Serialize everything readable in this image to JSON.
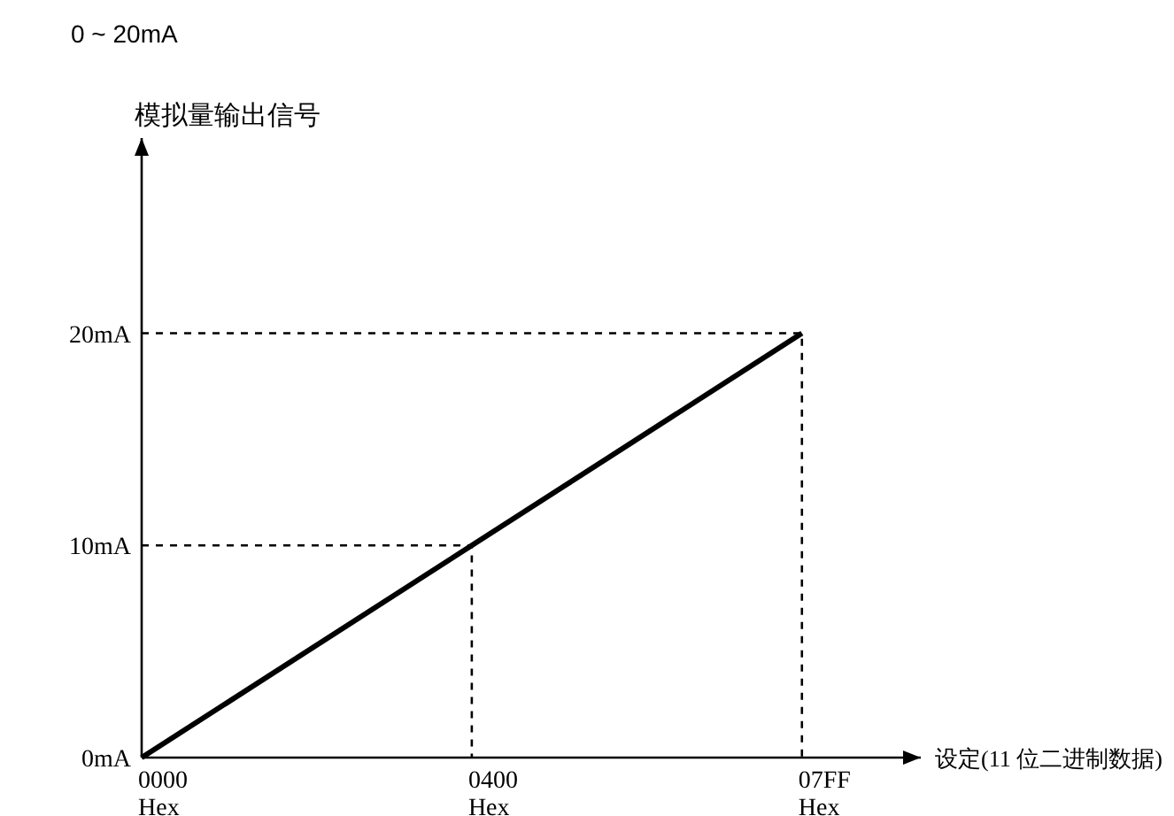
{
  "chart_data": {
    "type": "line",
    "title": "0 ~ 20mA",
    "ylabel": "模拟量输出信号",
    "xlabel": "设定(11 位二进制数据)",
    "categories": [
      "0000\nHex",
      "0400\nHex",
      "07FF\nHex"
    ],
    "ylim": [
      0,
      29.2
    ],
    "yticks": [
      {
        "value": 0,
        "label": "0mA"
      },
      {
        "value": 10,
        "label": "10mA"
      },
      {
        "value": 20,
        "label": "20mA"
      }
    ],
    "series": [
      {
        "color": "#000000",
        "values": [
          0,
          10,
          20
        ],
        "line_style": "solid"
      },
      {
        "color": "#000000",
        "x": [
          "0000\nHex",
          "0400\nHex",
          "0400\nHex"
        ],
        "values": [
          10,
          10,
          0
        ],
        "line_style": "dashed"
      },
      {
        "color": "#000000",
        "x": [
          "0000\nHex",
          "07FF\nHex",
          "07FF\nHex"
        ],
        "values": [
          20,
          20,
          0
        ],
        "line_style": "dashed"
      }
    ]
  }
}
